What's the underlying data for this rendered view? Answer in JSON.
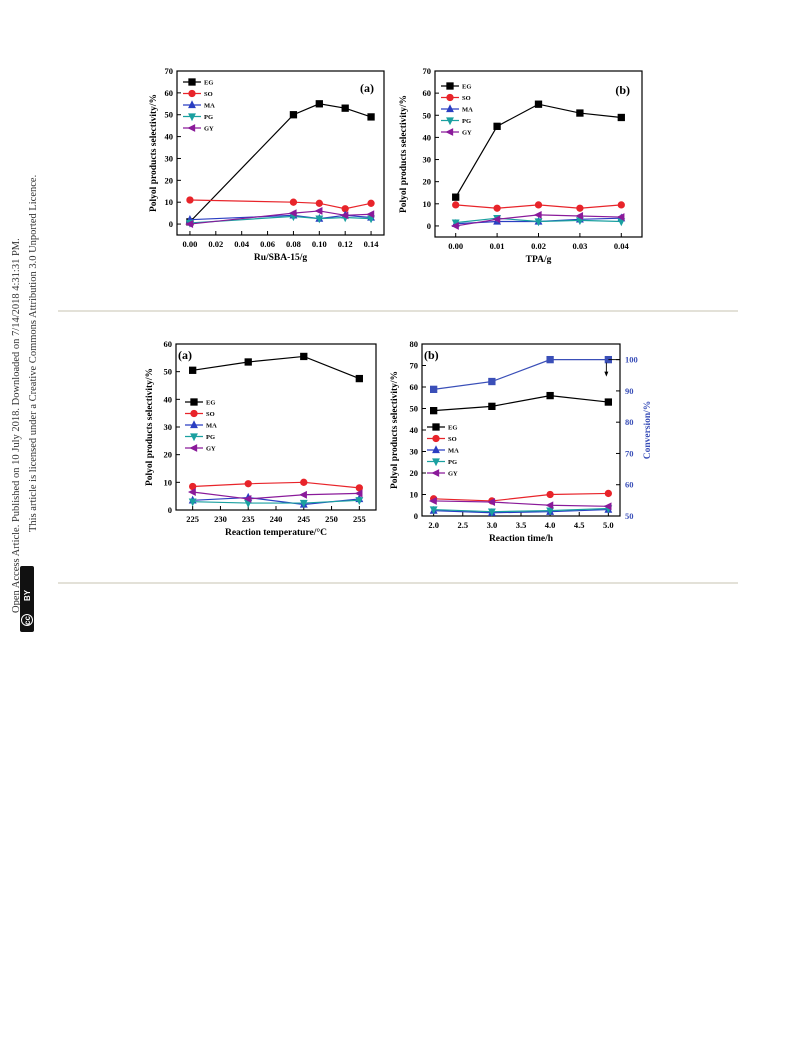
{
  "sidebar": {
    "line1": "Open Access Article. Published on 10 July 2018. Downloaded on 7/14/2018 4:31:31 PM.",
    "line2": "This article is licensed under a Creative Commons Attribution 3.0 Unported Licence.",
    "cc_label": "cc",
    "by_label": "BY"
  },
  "colors": {
    "EG": "#000000",
    "SO": "#e8242a",
    "MA": "#2a3ec2",
    "PG": "#1aa0a0",
    "GY": "#8a1a9a",
    "conv": "#3a4fb8"
  },
  "chart_data": [
    {
      "type": "line",
      "panel_label": "(a)",
      "xlabel": "Ru/SBA-15/g",
      "ylabel": "Polyol products selectivity/%",
      "xlim": [
        -0.01,
        0.15
      ],
      "ylim": [
        -5,
        70
      ],
      "xticks": [
        "0.00",
        "0.02",
        "0.04",
        "0.06",
        "0.08",
        "0.10",
        "0.12",
        "0.14"
      ],
      "yticks": [
        "0",
        "10",
        "20",
        "30",
        "40",
        "50",
        "60",
        "70"
      ],
      "legend_position": "top-left",
      "x": [
        0.0,
        0.08,
        0.1,
        0.12,
        0.14
      ],
      "series": [
        {
          "name": "EG",
          "marker": "square",
          "values": [
            1,
            50,
            55,
            53,
            49
          ]
        },
        {
          "name": "SO",
          "marker": "circle",
          "values": [
            11,
            10,
            9.5,
            7,
            9.5
          ]
        },
        {
          "name": "MA",
          "marker": "triangle-up",
          "values": [
            2,
            4,
            2.5,
            4,
            3
          ]
        },
        {
          "name": "PG",
          "marker": "triangle-down",
          "values": [
            0.5,
            3.5,
            2.5,
            3,
            2.5
          ]
        },
        {
          "name": "GY",
          "marker": "triangle-left",
          "values": [
            0,
            5,
            6,
            4,
            4.5
          ]
        }
      ]
    },
    {
      "type": "line",
      "panel_label": "(b)",
      "xlabel": "TPA/g",
      "ylabel": "Polyol products selectivity/%",
      "xlim": [
        -0.005,
        0.045
      ],
      "ylim": [
        -5,
        70
      ],
      "xticks": [
        "0.00",
        "0.01",
        "0.02",
        "0.03",
        "0.04"
      ],
      "yticks": [
        "0",
        "10",
        "20",
        "30",
        "40",
        "50",
        "60",
        "70"
      ],
      "legend_position": "top-left",
      "x": [
        0.0,
        0.01,
        0.02,
        0.03,
        0.04
      ],
      "series": [
        {
          "name": "EG",
          "marker": "square",
          "values": [
            13,
            45,
            55,
            51,
            49
          ]
        },
        {
          "name": "SO",
          "marker": "circle",
          "values": [
            9.5,
            8,
            9.5,
            8,
            9.5
          ]
        },
        {
          "name": "MA",
          "marker": "triangle-up",
          "values": [
            1,
            2,
            2,
            3,
            3.5
          ]
        },
        {
          "name": "PG",
          "marker": "triangle-down",
          "values": [
            1.5,
            3.5,
            2,
            2.5,
            2
          ]
        },
        {
          "name": "GY",
          "marker": "triangle-left",
          "values": [
            0,
            3,
            5,
            4.5,
            4
          ]
        }
      ]
    },
    {
      "type": "line",
      "panel_label": "(a)",
      "xlabel": "Reaction temperature/°C",
      "ylabel": "Polyol products selectivity/%",
      "xlim": [
        222,
        258
      ],
      "ylim": [
        0,
        60
      ],
      "xticks": [
        "225",
        "230",
        "235",
        "240",
        "245",
        "250",
        "255"
      ],
      "yticks": [
        "0",
        "10",
        "20",
        "30",
        "40",
        "50",
        "60"
      ],
      "legend_position": "center-left",
      "x": [
        225,
        235,
        245,
        255
      ],
      "series": [
        {
          "name": "EG",
          "marker": "square",
          "values": [
            50.5,
            53.5,
            55.5,
            47.5
          ]
        },
        {
          "name": "SO",
          "marker": "circle",
          "values": [
            8.5,
            9.5,
            10,
            8
          ]
        },
        {
          "name": "MA",
          "marker": "triangle-up",
          "values": [
            3.5,
            4.5,
            2,
            4
          ]
        },
        {
          "name": "PG",
          "marker": "triangle-down",
          "values": [
            3,
            2.5,
            2.5,
            3.5
          ]
        },
        {
          "name": "GY",
          "marker": "triangle-left",
          "values": [
            6.5,
            4,
            5.5,
            6
          ]
        }
      ]
    },
    {
      "type": "line",
      "panel_label": "(b)",
      "xlabel": "Reaction time/h",
      "ylabel": "Polyol products selectivity/%",
      "y2label": "Conversion/%",
      "xlim": [
        1.8,
        5.2
      ],
      "ylim": [
        0,
        80
      ],
      "y2lim": [
        50,
        105
      ],
      "xticks": [
        "2.0",
        "2.5",
        "3.0",
        "3.5",
        "4.0",
        "4.5",
        "5.0"
      ],
      "yticks": [
        "0",
        "10",
        "20",
        "30",
        "40",
        "50",
        "60",
        "70",
        "80"
      ],
      "y2ticks": [
        "50",
        "60",
        "70",
        "80",
        "90",
        "100"
      ],
      "legend_position": "center-left",
      "x": [
        2.0,
        3.0,
        4.0,
        5.0
      ],
      "series": [
        {
          "name": "EG",
          "marker": "square",
          "values": [
            49,
            51,
            56,
            53
          ]
        },
        {
          "name": "SO",
          "marker": "circle",
          "values": [
            8,
            7,
            10,
            10.5
          ]
        },
        {
          "name": "MA",
          "marker": "triangle-up",
          "values": [
            2.5,
            1.5,
            2,
            3
          ]
        },
        {
          "name": "PG",
          "marker": "triangle-down",
          "values": [
            3,
            2,
            2.5,
            3.5
          ]
        },
        {
          "name": "GY",
          "marker": "triangle-left",
          "values": [
            7,
            6.5,
            5,
            4.5
          ]
        }
      ],
      "secondary_series": {
        "axis": "right",
        "marker": "square",
        "values": [
          90.5,
          93,
          100,
          100
        ]
      }
    }
  ]
}
